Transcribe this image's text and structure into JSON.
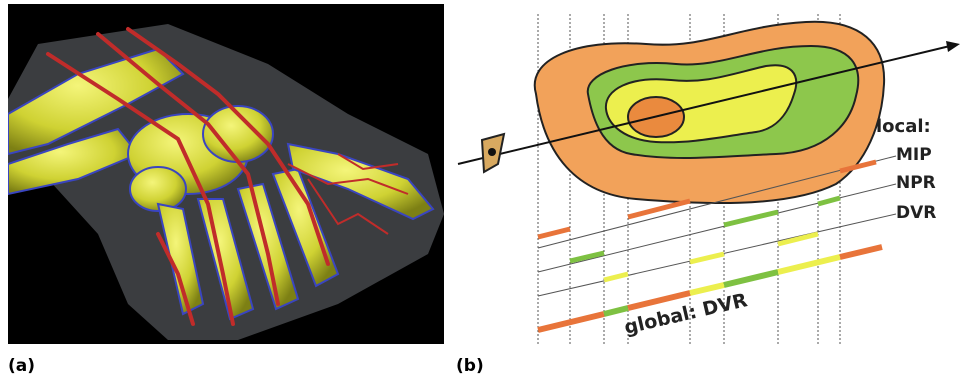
{
  "captions": {
    "a": "(a)",
    "b": "(b)"
  },
  "diagram": {
    "local_label": "local:",
    "methods": [
      "MIP",
      "NPR",
      "DVR"
    ],
    "global_label": "global: DVR"
  },
  "colors": {
    "orange": "#e8743a",
    "green": "#7ec142",
    "yellow": "#ecef4e",
    "bone": "#d8dc3a",
    "vessel": "#c02c2a"
  }
}
